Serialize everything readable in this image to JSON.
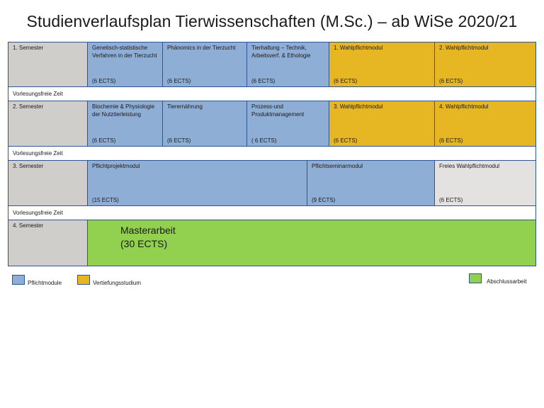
{
  "title": "Studienverlaufsplan Tierwissenschaften (M.Sc.) – ab WiSe 2020/21",
  "semesters": [
    {
      "label": "1. Semester",
      "modules": [
        {
          "name": "Genetisch-statistische Verfahren in der Tierzucht",
          "ects": "(6 ECTS)",
          "type": "Pflichtmodule"
        },
        {
          "name": "Phänomics in der Tierzucht",
          "ects": "(6 ECTS)",
          "type": "Pflichtmodule"
        },
        {
          "name": "Tierhaltung – Technik, Arbeitsverf. & Ethologie",
          "ects": "(6 ECTS)",
          "type": "Pflichtmodule"
        },
        {
          "name": "1. Wahlpflichtmodul",
          "ects": "(6 ECTS)",
          "type": "Vertiefungsstudium"
        },
        {
          "name": "2. Wahlpflichtmodul",
          "ects": "(6 ECTS)",
          "type": "Vertiefungsstudium"
        }
      ]
    },
    {
      "label": "2. Semester",
      "modules": [
        {
          "name": "Biochemie & Physiologie der Nutztierleistung",
          "ects": "(6 ECTS)",
          "type": "Pflichtmodule"
        },
        {
          "name": "Tierernährung",
          "ects": "(6 ECTS)",
          "type": "Pflichtmodule"
        },
        {
          "name": "Prozess-und Produktmanagement",
          "ects": "( 6 ECTS)",
          "type": "Pflichtmodule"
        },
        {
          "name": "3. Wahlpflichtmodul",
          "ects": "(6 ECTS)",
          "type": "Vertiefungsstudium"
        },
        {
          "name": "4. Wahlpflichtmodul",
          "ects": "(6 ECTS)",
          "type": "Vertiefungsstudium"
        }
      ]
    },
    {
      "label": "3. Semester",
      "modules": [
        {
          "name": "Pflichtprojektmodul",
          "ects": "(15 ECTS)",
          "type": "Pflichtmodule"
        },
        {
          "name": "Pflichtseminarmodul",
          "ects": "(9 ECTS)",
          "type": "Pflichtmodule"
        },
        {
          "name": "Freies Wahlpflichtmodul",
          "ects": "(6 ECTS)",
          "type": "free"
        }
      ]
    },
    {
      "label": "4. Semester",
      "modules": [
        {
          "name": "Masterarbeit",
          "ects": "(30 ECTS)",
          "type": "Abschlussarbeit"
        }
      ]
    }
  ],
  "break_label": "Vorlesungsfreie Zeit",
  "legend": [
    {
      "label": "Pflichtmodule",
      "color": "#8faed6"
    },
    {
      "label": "Vertiefungsstudium",
      "color": "#e7b623"
    },
    {
      "label": "Abschlussarbeit",
      "color": "#92d050"
    }
  ],
  "colors": {
    "semester": "#d0cecb",
    "pflicht": "#8faed6",
    "vertiefung": "#e7b623",
    "frei": "#e3e2e0",
    "abschluss": "#92d050",
    "border": "#2f5597"
  }
}
